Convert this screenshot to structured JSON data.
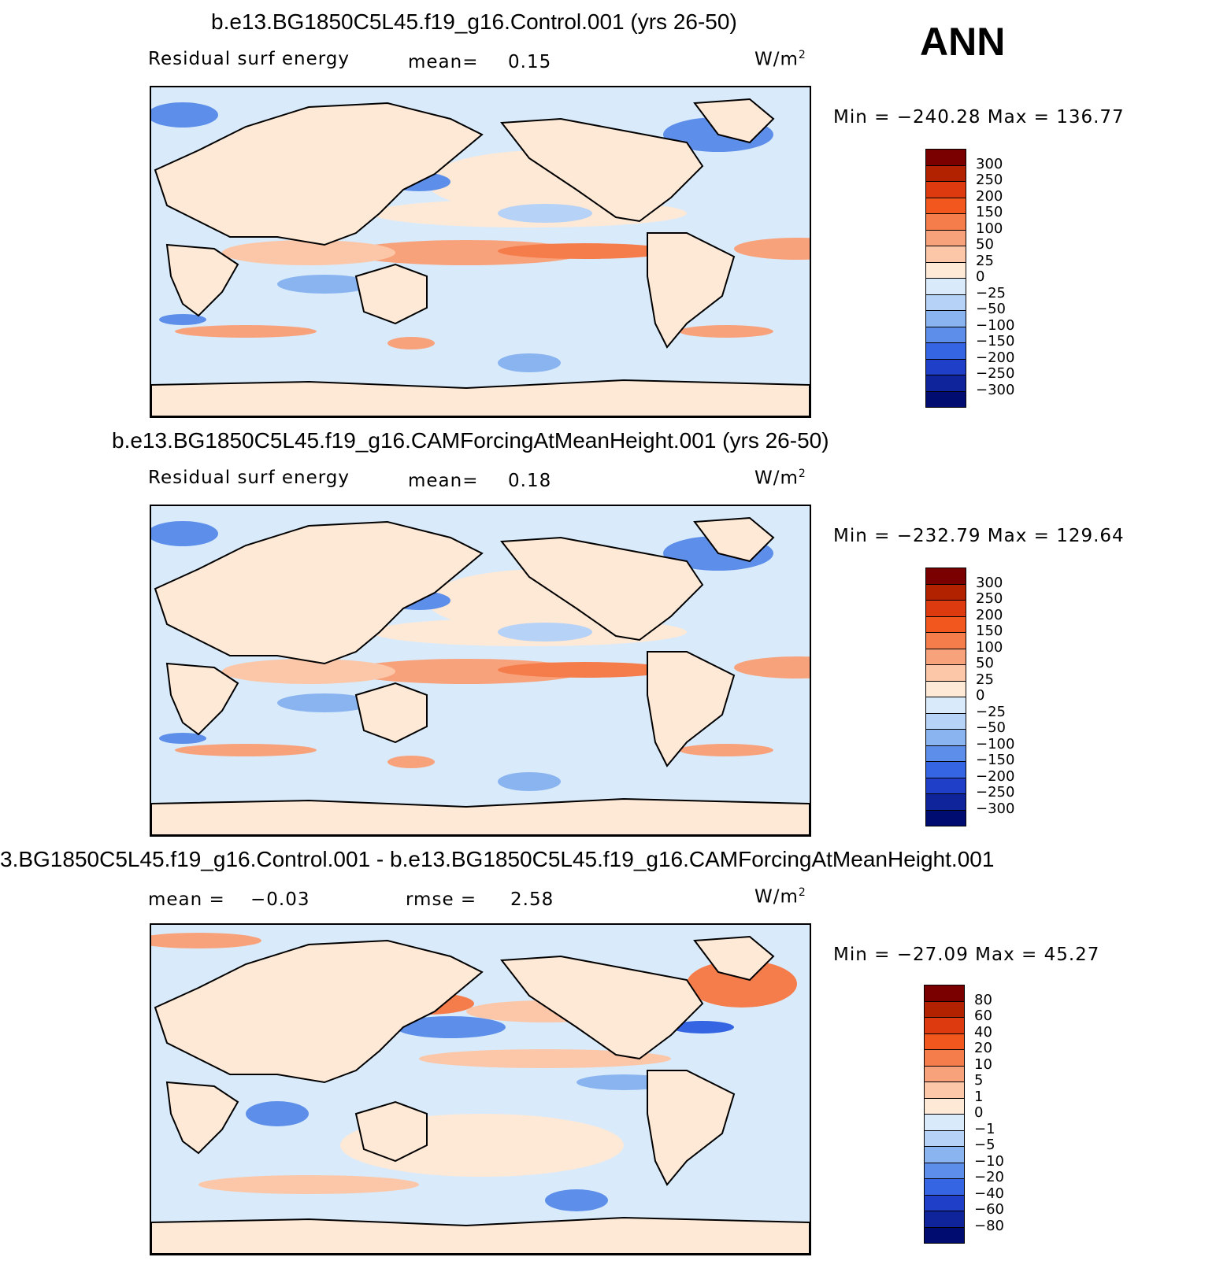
{
  "season": "ANN",
  "units_base": "W/m",
  "units_exp": "2",
  "panels": [
    {
      "title": "b.e13.BG1850C5L45.f19_g16.Control.001 (yrs 26-50)",
      "variable": "Residual surf energy",
      "stat1_label": "mean=",
      "stat1_value": "0.15",
      "min_max": "Min = −240.28 Max = 136.77"
    },
    {
      "title": "b.e13.BG1850C5L45.f19_g16.CAMForcingAtMeanHeight.001 (yrs 26-50)",
      "variable": "Residual surf energy",
      "stat1_label": "mean=",
      "stat1_value": "0.18",
      "min_max": "Min = −232.79 Max = 129.64"
    },
    {
      "title": "3.BG1850C5L45.f19_g16.Control.001 - b.e13.BG1850C5L45.f19_g16.CAMForcingAtMeanHeight.001",
      "stat1_label": "mean =",
      "stat1_value": "−0.03",
      "stat2_label": "rmse =",
      "stat2_value": "2.58",
      "min_max": "Min = −27.09 Max =  45.27"
    }
  ],
  "chart_data": [
    {
      "type": "heatmap",
      "title": "b.e13.BG1850C5L45.f19_g16.Control.001 (yrs 26-50)",
      "variable": "Residual surf energy",
      "units": "W/m2",
      "mean": 0.15,
      "min": -240.28,
      "max": 136.77,
      "colorbar_levels": [
        "300",
        "250",
        "200",
        "150",
        "100",
        "50",
        "25",
        "0",
        "−25",
        "−50",
        "−100",
        "−150",
        "−200",
        "−250",
        "−300"
      ],
      "colorbar_colors": [
        "#7a0000",
        "#b32200",
        "#dd3a10",
        "#f2581e",
        "#f57d4c",
        "#f8a27c",
        "#fbc7a8",
        "#fee8d6",
        "#d9ebfb",
        "#b6d2f7",
        "#8ab4f0",
        "#5d8eea",
        "#3565e2",
        "#1f3fc8",
        "#0f249a",
        "#000c70"
      ]
    },
    {
      "type": "heatmap",
      "title": "b.e13.BG1850C5L45.f19_g16.CAMForcingAtMeanHeight.001 (yrs 26-50)",
      "variable": "Residual surf energy",
      "units": "W/m2",
      "mean": 0.18,
      "min": -232.79,
      "max": 129.64,
      "colorbar_levels": [
        "300",
        "250",
        "200",
        "150",
        "100",
        "50",
        "25",
        "0",
        "−25",
        "−50",
        "−100",
        "−150",
        "−200",
        "−250",
        "−300"
      ],
      "colorbar_colors": [
        "#7a0000",
        "#b32200",
        "#dd3a10",
        "#f2581e",
        "#f57d4c",
        "#f8a27c",
        "#fbc7a8",
        "#fee8d6",
        "#d9ebfb",
        "#b6d2f7",
        "#8ab4f0",
        "#5d8eea",
        "#3565e2",
        "#1f3fc8",
        "#0f249a",
        "#000c70"
      ]
    },
    {
      "type": "heatmap",
      "title": "Control.001 - CAMForcingAtMeanHeight.001",
      "units": "W/m2",
      "mean": -0.03,
      "rmse": 2.58,
      "min": -27.09,
      "max": 45.27,
      "colorbar_levels": [
        "80",
        "60",
        "40",
        "20",
        "10",
        "5",
        "1",
        "0",
        "−1",
        "−5",
        "−10",
        "−20",
        "−40",
        "−60",
        "−80"
      ],
      "colorbar_colors": [
        "#7a0000",
        "#b32200",
        "#dd3a10",
        "#f2581e",
        "#f57d4c",
        "#f8a27c",
        "#fbc7a8",
        "#fee8d6",
        "#d9ebfb",
        "#b6d2f7",
        "#8ab4f0",
        "#5d8eea",
        "#3565e2",
        "#1f3fc8",
        "#0f249a",
        "#000c70"
      ]
    }
  ]
}
